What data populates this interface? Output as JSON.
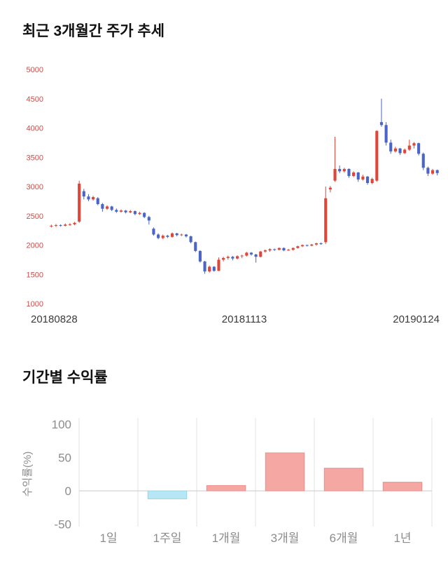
{
  "chart_data": [
    {
      "type": "candlestick",
      "title": "최근 3개월간 주가 추세",
      "ylim": [
        1000,
        5000
      ],
      "yticks": [
        5000,
        4500,
        4000,
        3500,
        3000,
        2500,
        2000,
        1500,
        1000
      ],
      "xtick_labels": [
        "20180828",
        "20181113",
        "20190124"
      ],
      "colors": {
        "up": "#df4538",
        "down": "#4a64c8",
        "y_tick_label": "#c0504d",
        "x_tick_label": "#3a3a3a"
      },
      "candles": [
        [
          2320,
          2350,
          2300,
          2330
        ],
        [
          2330,
          2360,
          2310,
          2340
        ],
        [
          2340,
          2355,
          2315,
          2330
        ],
        [
          2330,
          2370,
          2320,
          2350
        ],
        [
          2350,
          2375,
          2330,
          2355
        ],
        [
          2355,
          2395,
          2340,
          2380
        ],
        [
          2400,
          3100,
          2380,
          3050
        ],
        [
          2920,
          2960,
          2780,
          2830
        ],
        [
          2830,
          2870,
          2750,
          2780
        ],
        [
          2780,
          2840,
          2760,
          2820
        ],
        [
          2800,
          2820,
          2680,
          2700
        ],
        [
          2700,
          2720,
          2570,
          2620
        ],
        [
          2620,
          2680,
          2600,
          2660
        ],
        [
          2660,
          2670,
          2580,
          2600
        ],
        [
          2600,
          2625,
          2550,
          2570
        ],
        [
          2570,
          2610,
          2555,
          2590
        ],
        [
          2590,
          2600,
          2540,
          2560
        ],
        [
          2560,
          2600,
          2545,
          2580
        ],
        [
          2580,
          2590,
          2510,
          2530
        ],
        [
          2530,
          2570,
          2515,
          2550
        ],
        [
          2550,
          2560,
          2460,
          2480
        ],
        [
          2480,
          2500,
          2350,
          2420
        ],
        [
          2280,
          2300,
          2160,
          2180
        ],
        [
          2180,
          2200,
          2100,
          2120
        ],
        [
          2120,
          2180,
          2100,
          2160
        ],
        [
          2160,
          2175,
          2120,
          2140
        ],
        [
          2140,
          2215,
          2125,
          2200
        ],
        [
          2200,
          2210,
          2150,
          2170
        ],
        [
          2170,
          2195,
          2155,
          2180
        ],
        [
          2180,
          2190,
          2130,
          2150
        ],
        [
          2150,
          2160,
          2030,
          2050
        ],
        [
          2050,
          2060,
          1880,
          1900
        ],
        [
          1900,
          1910,
          1700,
          1720
        ],
        [
          1720,
          1730,
          1510,
          1550
        ],
        [
          1550,
          1650,
          1530,
          1630
        ],
        [
          1630,
          1640,
          1545,
          1560
        ],
        [
          1560,
          1790,
          1555,
          1750
        ],
        [
          1750,
          1800,
          1720,
          1780
        ],
        [
          1780,
          1820,
          1750,
          1800
        ],
        [
          1800,
          1815,
          1740,
          1770
        ],
        [
          1770,
          1825,
          1755,
          1810
        ],
        [
          1810,
          1835,
          1775,
          1820
        ],
        [
          1820,
          1885,
          1805,
          1870
        ],
        [
          1870,
          1880,
          1820,
          1840
        ],
        [
          1840,
          1850,
          1700,
          1800
        ],
        [
          1800,
          1900,
          1790,
          1890
        ],
        [
          1890,
          1925,
          1870,
          1910
        ],
        [
          1910,
          1945,
          1885,
          1930
        ],
        [
          1930,
          1940,
          1900,
          1920
        ],
        [
          1920,
          1960,
          1910,
          1950
        ],
        [
          1950,
          1958,
          1895,
          1910
        ],
        [
          1910,
          1935,
          1900,
          1920
        ],
        [
          1920,
          1960,
          1905,
          1950
        ],
        [
          1950,
          1990,
          1940,
          1980
        ],
        [
          1980,
          2010,
          1965,
          2000
        ],
        [
          2000,
          2008,
          1975,
          1990
        ],
        [
          1990,
          2020,
          1980,
          2010
        ],
        [
          2010,
          2040,
          1990,
          2030
        ],
        [
          2030,
          2045,
          2005,
          2020
        ],
        [
          2050,
          3000,
          2020,
          2800
        ],
        [
          2950,
          3010,
          2900,
          2980
        ],
        [
          3100,
          3850,
          3080,
          3300
        ],
        [
          3300,
          3360,
          3230,
          3260
        ],
        [
          3260,
          3320,
          3240,
          3300
        ],
        [
          3300,
          3310,
          3150,
          3180
        ],
        [
          3180,
          3260,
          3160,
          3240
        ],
        [
          3240,
          3250,
          3080,
          3120
        ],
        [
          3120,
          3200,
          3100,
          3170
        ],
        [
          3170,
          3180,
          3030,
          3060
        ],
        [
          3060,
          3150,
          3040,
          3130
        ],
        [
          3100,
          3960,
          3080,
          3950
        ],
        [
          4100,
          4500,
          4020,
          4050
        ],
        [
          4050,
          4100,
          3700,
          3750
        ],
        [
          3750,
          3800,
          3560,
          3600
        ],
        [
          3600,
          3680,
          3580,
          3650
        ],
        [
          3650,
          3660,
          3540,
          3570
        ],
        [
          3570,
          3650,
          3555,
          3630
        ],
        [
          3630,
          3800,
          3610,
          3700
        ],
        [
          3700,
          3760,
          3650,
          3740
        ],
        [
          3740,
          3750,
          3530,
          3560
        ],
        [
          3560,
          3580,
          3280,
          3320
        ],
        [
          3320,
          3340,
          3180,
          3220
        ],
        [
          3220,
          3300,
          3200,
          3280
        ],
        [
          3280,
          3290,
          3190,
          3230
        ]
      ]
    },
    {
      "type": "bar",
      "title": "기간별 수익률",
      "ylabel": "수익률(%)",
      "ylim": [
        -50,
        100
      ],
      "yticks": [
        100,
        50,
        0,
        -50
      ],
      "categories": [
        "1일",
        "1주일",
        "1개월",
        "3개월",
        "6개월",
        "1년"
      ],
      "values": [
        0,
        -12,
        8,
        57,
        34,
        13
      ],
      "legend": null,
      "grid": "vertical-only",
      "colors": {
        "positive": "#f4a7a3",
        "positive_border": "#ee8e89",
        "negative": "#b7e6f4",
        "negative_border": "#93d7ee",
        "axis_text": "#8c8c8c",
        "grid": "#e3e3e3",
        "zero_line": "#c9c9c9"
      }
    }
  ]
}
